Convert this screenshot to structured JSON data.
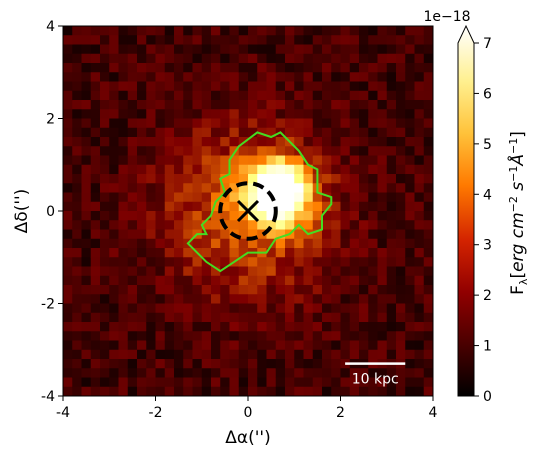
{
  "chart_data": {
    "type": "heatmap",
    "xlabel": "Δα('')",
    "ylabel": "Δδ('')",
    "xlim": [
      -4,
      4
    ],
    "ylim": [
      -4,
      4
    ],
    "x_ticks": [
      "-4",
      "-2",
      "0",
      "2",
      "4"
    ],
    "y_ticks": [
      "-4",
      "-2",
      "0",
      "2",
      "4"
    ],
    "colormap": "afmhot",
    "colorbar": {
      "label": "F_λ[erg cm^-2 s^-1 Å^-1]",
      "offset_text": "1e−18",
      "range": [
        0,
        7
      ],
      "ticks": [
        "0",
        "1",
        "2",
        "3",
        "4",
        "5",
        "6",
        "7"
      ],
      "extend": "max"
    },
    "source": {
      "peak_x": 0.65,
      "peak_y": 0.4,
      "peak_flux": 7.5,
      "marker": "×",
      "marker_x": 0,
      "marker_y": 0
    },
    "aperture_circle": {
      "center": [
        0,
        0
      ],
      "radius": 0.6,
      "style": "dashed",
      "color": "#000000"
    },
    "contour_color": "#44dd22",
    "contour": [
      [
        -0.4,
        1.1
      ],
      [
        -0.2,
        1.4
      ],
      [
        0.2,
        1.7
      ],
      [
        0.5,
        1.6
      ],
      [
        0.7,
        1.7
      ],
      [
        0.9,
        1.5
      ],
      [
        1.1,
        1.3
      ],
      [
        1.3,
        1.0
      ],
      [
        1.5,
        0.9
      ],
      [
        1.5,
        0.4
      ],
      [
        1.8,
        0.3
      ],
      [
        1.8,
        0.15
      ],
      [
        1.6,
        -0.1
      ],
      [
        1.6,
        -0.4
      ],
      [
        1.3,
        -0.5
      ],
      [
        1.1,
        -0.3
      ],
      [
        0.9,
        -0.5
      ],
      [
        0.6,
        -0.6
      ],
      [
        0.4,
        -0.9
      ],
      [
        0.0,
        -0.9
      ],
      [
        -0.3,
        -1.1
      ],
      [
        -0.6,
        -1.3
      ],
      [
        -0.9,
        -1.1
      ],
      [
        -1.3,
        -0.7
      ],
      [
        -1.1,
        -0.5
      ],
      [
        -0.9,
        -0.5
      ],
      [
        -1.0,
        -0.3
      ],
      [
        -0.8,
        -0.1
      ],
      [
        -0.7,
        0.2
      ],
      [
        -0.5,
        0.4
      ],
      [
        -0.6,
        0.7
      ],
      [
        -0.4,
        0.8
      ],
      [
        -0.4,
        1.1
      ]
    ],
    "scale_bar": {
      "label": "10 kpc",
      "x_start": 2.1,
      "x_end": 3.4,
      "y": -3.3
    }
  }
}
